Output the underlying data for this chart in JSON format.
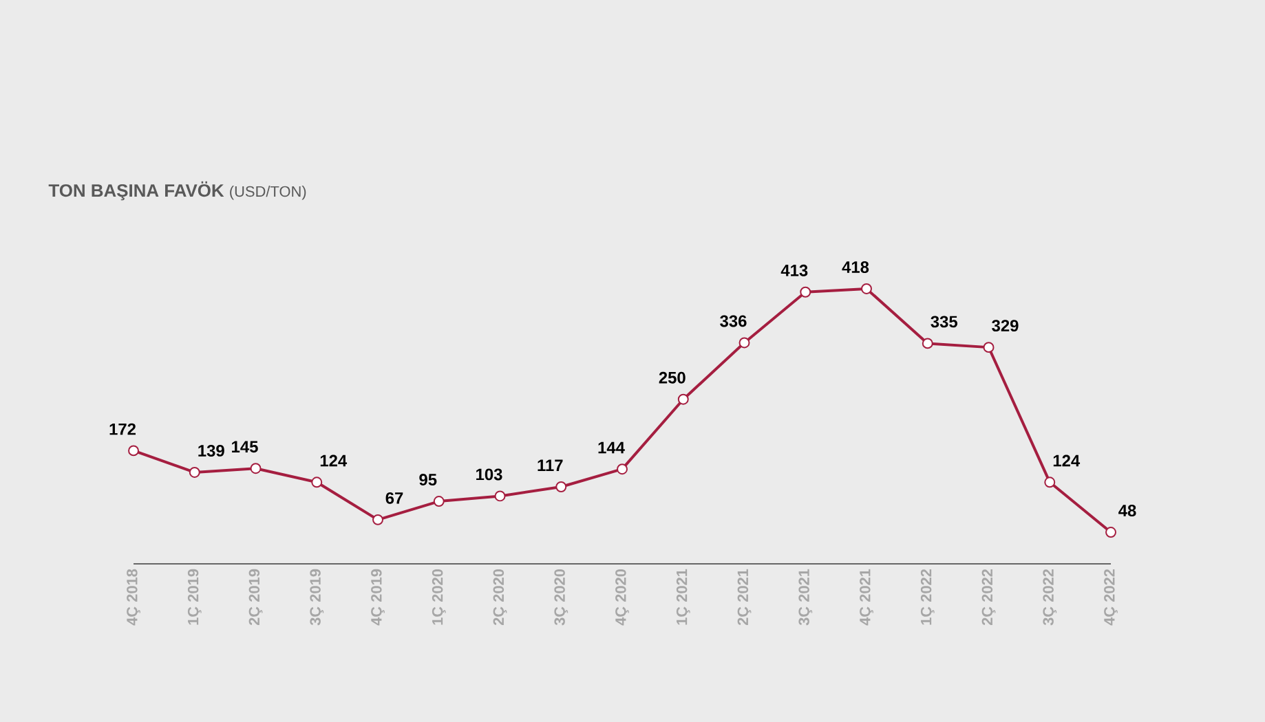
{
  "chart_data": {
    "type": "line",
    "title": "TON BAŞINA FAVÖK",
    "subtitle": "(USD/TON)",
    "categories": [
      "4Ç 2018",
      "1Ç 2019",
      "2Ç 2019",
      "3Ç 2019",
      "4Ç 2019",
      "1Ç 2020",
      "2Ç 2020",
      "3Ç 2020",
      "4Ç 2020",
      "1Ç 2021",
      "2Ç 2021",
      "3Ç 2021",
      "4Ç 2021",
      "1Ç 2022",
      "2Ç 2022",
      "3Ç 2022",
      "4Ç 2022"
    ],
    "values": [
      172,
      139,
      145,
      124,
      67,
      95,
      103,
      117,
      144,
      250,
      336,
      413,
      418,
      335,
      329,
      124,
      48
    ],
    "color": "#a51e40",
    "marker": "circle",
    "line_style": "solid",
    "data_labels": true,
    "tick_labels": "x"
  }
}
